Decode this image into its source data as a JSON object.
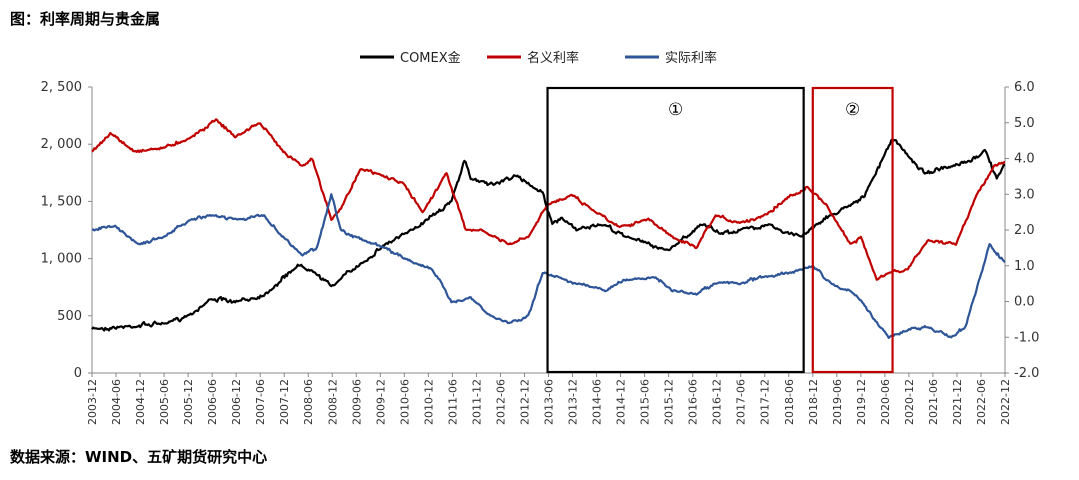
{
  "figure_title": "图：利率周期与贵金属",
  "source_note": "数据来源：WIND、五矿期货研究中心",
  "chart_data": {
    "type": "line",
    "title": "",
    "left_axis": {
      "ticks": [
        "0",
        "500",
        "1, 000",
        "1, 500",
        "2, 000",
        "2, 500"
      ],
      "ylim": [
        0,
        2500
      ]
    },
    "right_axis": {
      "ticks": [
        "-2.0",
        "-1.0",
        "0.0",
        "1.0",
        "2.0",
        "3.0",
        "4.0",
        "5.0",
        "6.0"
      ],
      "ylim": [
        -2.0,
        6.0
      ]
    },
    "x_ticks": [
      "2003-12",
      "2004-06",
      "2004-12",
      "2005-06",
      "2005-12",
      "2006-06",
      "2006-12",
      "2007-06",
      "2007-12",
      "2008-06",
      "2008-12",
      "2009-06",
      "2009-12",
      "2010-06",
      "2010-12",
      "2011-06",
      "2011-12",
      "2012-06",
      "2012-12",
      "2013-06",
      "2013-12",
      "2014-06",
      "2014-12",
      "2015-06",
      "2015-12",
      "2016-06",
      "2016-12",
      "2017-06",
      "2017-12",
      "2018-06",
      "2018-12",
      "2019-06",
      "2019-12",
      "2020-06",
      "2020-12",
      "2021-06",
      "2021-12",
      "2022-06",
      "2022-12"
    ],
    "legend_position": "top-center",
    "grid": false,
    "series": [
      {
        "name": "COMEX金",
        "axis": "left",
        "color": "#000000",
        "x": [
          2003.92,
          2004.5,
          2005.5,
          2006.0,
          2006.4,
          2006.9,
          2007.5,
          2008.2,
          2008.5,
          2008.9,
          2009.5,
          2010.0,
          2010.5,
          2011.0,
          2011.4,
          2011.67,
          2011.8,
          2012.3,
          2012.7,
          2013.0,
          2013.3,
          2013.5,
          2013.7,
          2014.0,
          2014.5,
          2015.0,
          2015.9,
          2016.6,
          2017.0,
          2017.5,
          2018.0,
          2018.3,
          2018.7,
          2019.0,
          2019.6,
          2020.0,
          2020.58,
          2020.9,
          2021.25,
          2021.8,
          2022.2,
          2022.5,
          2022.75,
          2022.92
        ],
        "y": [
          390,
          400,
          440,
          520,
          650,
          620,
          680,
          940,
          900,
          760,
          950,
          1120,
          1230,
          1380,
          1500,
          1860,
          1700,
          1650,
          1720,
          1660,
          1580,
          1300,
          1350,
          1250,
          1300,
          1200,
          1070,
          1300,
          1220,
          1260,
          1300,
          1230,
          1200,
          1300,
          1450,
          1550,
          2050,
          1900,
          1750,
          1800,
          1850,
          1950,
          1700,
          1820
        ]
      },
      {
        "name": "名义利率",
        "axis": "right",
        "color": "#c00000",
        "x": [
          2003.92,
          2004.3,
          2004.8,
          2005.4,
          2006.0,
          2006.5,
          2006.9,
          2007.4,
          2007.9,
          2008.3,
          2008.5,
          2008.9,
          2009.1,
          2009.5,
          2010.0,
          2010.4,
          2010.8,
          2011.3,
          2011.7,
          2012.0,
          2012.6,
          2013.0,
          2013.4,
          2013.9,
          2014.3,
          2014.9,
          2015.5,
          2016.0,
          2016.5,
          2016.9,
          2017.4,
          2017.9,
          2018.4,
          2018.8,
          2019.2,
          2019.7,
          2019.92,
          2020.25,
          2020.5,
          2020.9,
          2021.3,
          2021.9,
          2022.3,
          2022.7,
          2022.92
        ],
        "y": [
          4.2,
          4.7,
          4.2,
          4.3,
          4.6,
          5.1,
          4.6,
          5.0,
          4.2,
          3.8,
          4.0,
          2.3,
          2.6,
          3.7,
          3.5,
          3.3,
          2.5,
          3.6,
          2.0,
          2.0,
          1.6,
          1.8,
          2.7,
          3.0,
          2.6,
          2.1,
          2.3,
          1.8,
          1.5,
          2.4,
          2.2,
          2.4,
          2.9,
          3.2,
          2.7,
          1.6,
          1.8,
          0.6,
          0.8,
          0.9,
          1.7,
          1.6,
          2.9,
          3.8,
          3.9
        ]
      },
      {
        "name": "实际利率",
        "axis": "right",
        "color": "#2e5597",
        "x": [
          2003.92,
          2004.4,
          2004.9,
          2005.4,
          2006.0,
          2006.5,
          2007.0,
          2007.5,
          2007.9,
          2008.3,
          2008.6,
          2008.9,
          2009.1,
          2009.6,
          2010.0,
          2010.6,
          2011.0,
          2011.4,
          2011.8,
          2012.2,
          2012.6,
          2013.0,
          2013.3,
          2013.6,
          2014.0,
          2014.6,
          2015.0,
          2015.6,
          2016.0,
          2016.5,
          2016.9,
          2017.4,
          2017.9,
          2018.4,
          2018.92,
          2019.3,
          2019.7,
          2020.0,
          2020.2,
          2020.5,
          2020.9,
          2021.3,
          2021.8,
          2022.1,
          2022.3,
          2022.6,
          2022.92
        ],
        "y": [
          2.0,
          2.1,
          1.6,
          1.8,
          2.3,
          2.4,
          2.3,
          2.4,
          1.8,
          1.3,
          1.5,
          3.0,
          2.0,
          1.7,
          1.5,
          1.1,
          0.9,
          0.0,
          0.1,
          -0.4,
          -0.6,
          -0.4,
          0.8,
          0.7,
          0.5,
          0.3,
          0.6,
          0.7,
          0.3,
          0.2,
          0.5,
          0.5,
          0.7,
          0.8,
          1.0,
          0.5,
          0.3,
          -0.1,
          -0.5,
          -1.0,
          -0.8,
          -0.7,
          -1.0,
          -0.7,
          0.2,
          1.6,
          1.1
        ]
      }
    ],
    "boxes": [
      {
        "label": "①",
        "x_start": 2013.4,
        "x_end": 2018.73,
        "color": "#000000"
      },
      {
        "label": "②",
        "x_start": 2018.92,
        "x_end": 2020.58,
        "color": "#c00000"
      }
    ]
  }
}
